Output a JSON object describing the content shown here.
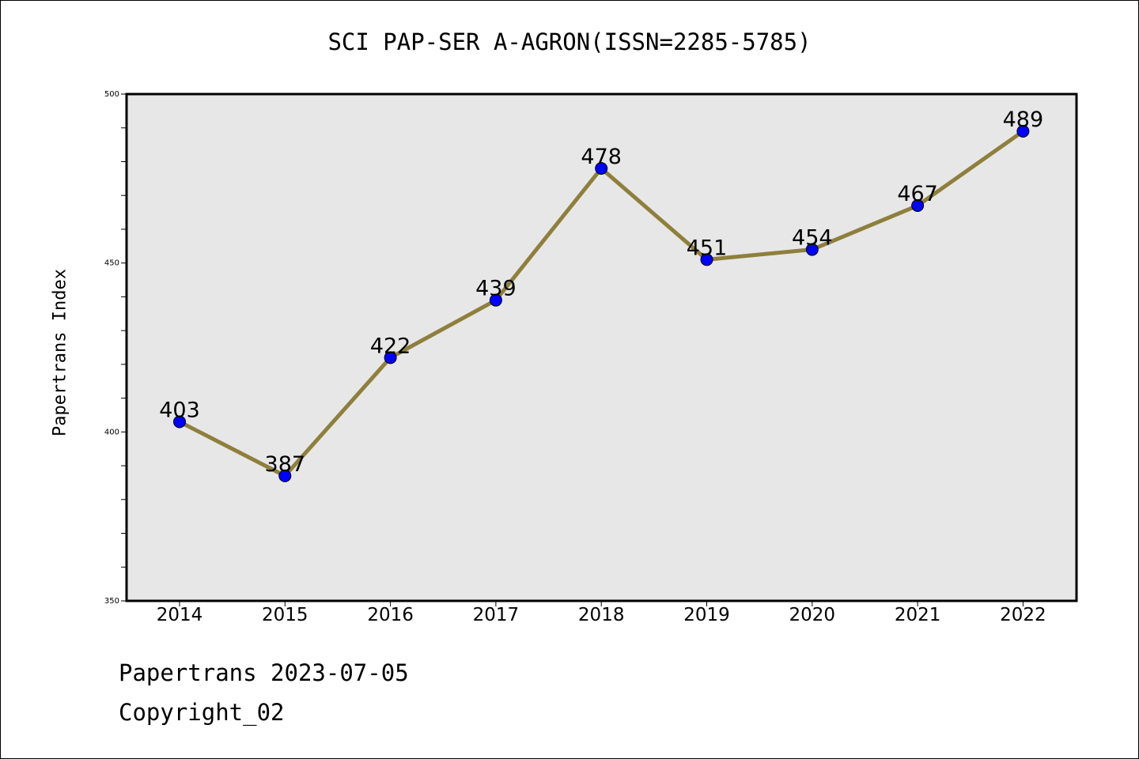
{
  "chart_data": {
    "type": "line",
    "title": "SCI PAP-SER A-AGRON(ISSN=2285-5785)",
    "ylabel": "Papertrans Index",
    "xlabel": "",
    "categories": [
      "2014",
      "2015",
      "2016",
      "2017",
      "2018",
      "2019",
      "2020",
      "2021",
      "2022"
    ],
    "values": [
      403,
      387,
      422,
      439,
      478,
      451,
      454,
      467,
      489
    ],
    "ylim": [
      350,
      500
    ],
    "yticks": [
      350,
      400,
      450,
      500
    ],
    "grid": false,
    "legend": "none",
    "line_color": "#8e7f3c",
    "marker_color": "#0000ff",
    "plot_bg": "#e7e7e7"
  },
  "footer": {
    "line1": "Papertrans 2023-07-05",
    "line2": "Copyright_02"
  }
}
